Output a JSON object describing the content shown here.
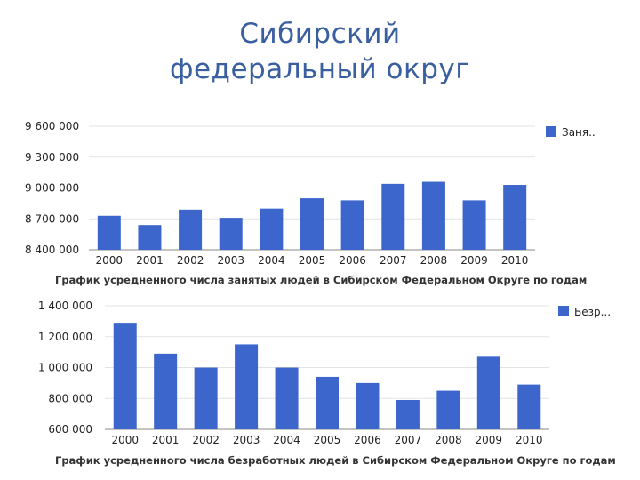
{
  "title": {
    "line1": "Сибирский",
    "line2": "федеральный округ"
  },
  "colors": {
    "bar": "#3c66cc",
    "grid": "#e3e3e3",
    "axis": "#888888"
  },
  "chart_data": [
    {
      "type": "bar",
      "title": "График усредненного числа занятых людей в Сибирском Федеральном Округе по годам",
      "categories": [
        "2000",
        "2001",
        "2002",
        "2003",
        "2004",
        "2005",
        "2006",
        "2007",
        "2008",
        "2009",
        "2010"
      ],
      "series": [
        {
          "name": "Заня..",
          "values": [
            8730000,
            8640000,
            8790000,
            8710000,
            8800000,
            8900000,
            8880000,
            9040000,
            9060000,
            8880000,
            9030000
          ]
        }
      ],
      "yticks": [
        "9 600 000",
        "9 300 000",
        "9 000 000",
        "8 700 000",
        "8 400 000"
      ],
      "ylim": [
        8400000,
        9600000
      ],
      "grid": true,
      "legend": "top-right"
    },
    {
      "type": "bar",
      "title": "График усредненного числа безработных людей в Сибирском Федеральном Округе по годам",
      "categories": [
        "2000",
        "2001",
        "2002",
        "2003",
        "2004",
        "2005",
        "2006",
        "2007",
        "2008",
        "2009",
        "2010"
      ],
      "series": [
        {
          "name": "Безр...",
          "values": [
            1290000,
            1090000,
            1000000,
            1150000,
            1000000,
            940000,
            900000,
            790000,
            850000,
            1070000,
            890000
          ]
        }
      ],
      "yticks": [
        "1 400 000",
        "1 200 000",
        "1 000 000",
        "800 000",
        "600 000"
      ],
      "ylim": [
        600000,
        1400000
      ],
      "grid": true,
      "legend": "top-right"
    }
  ]
}
